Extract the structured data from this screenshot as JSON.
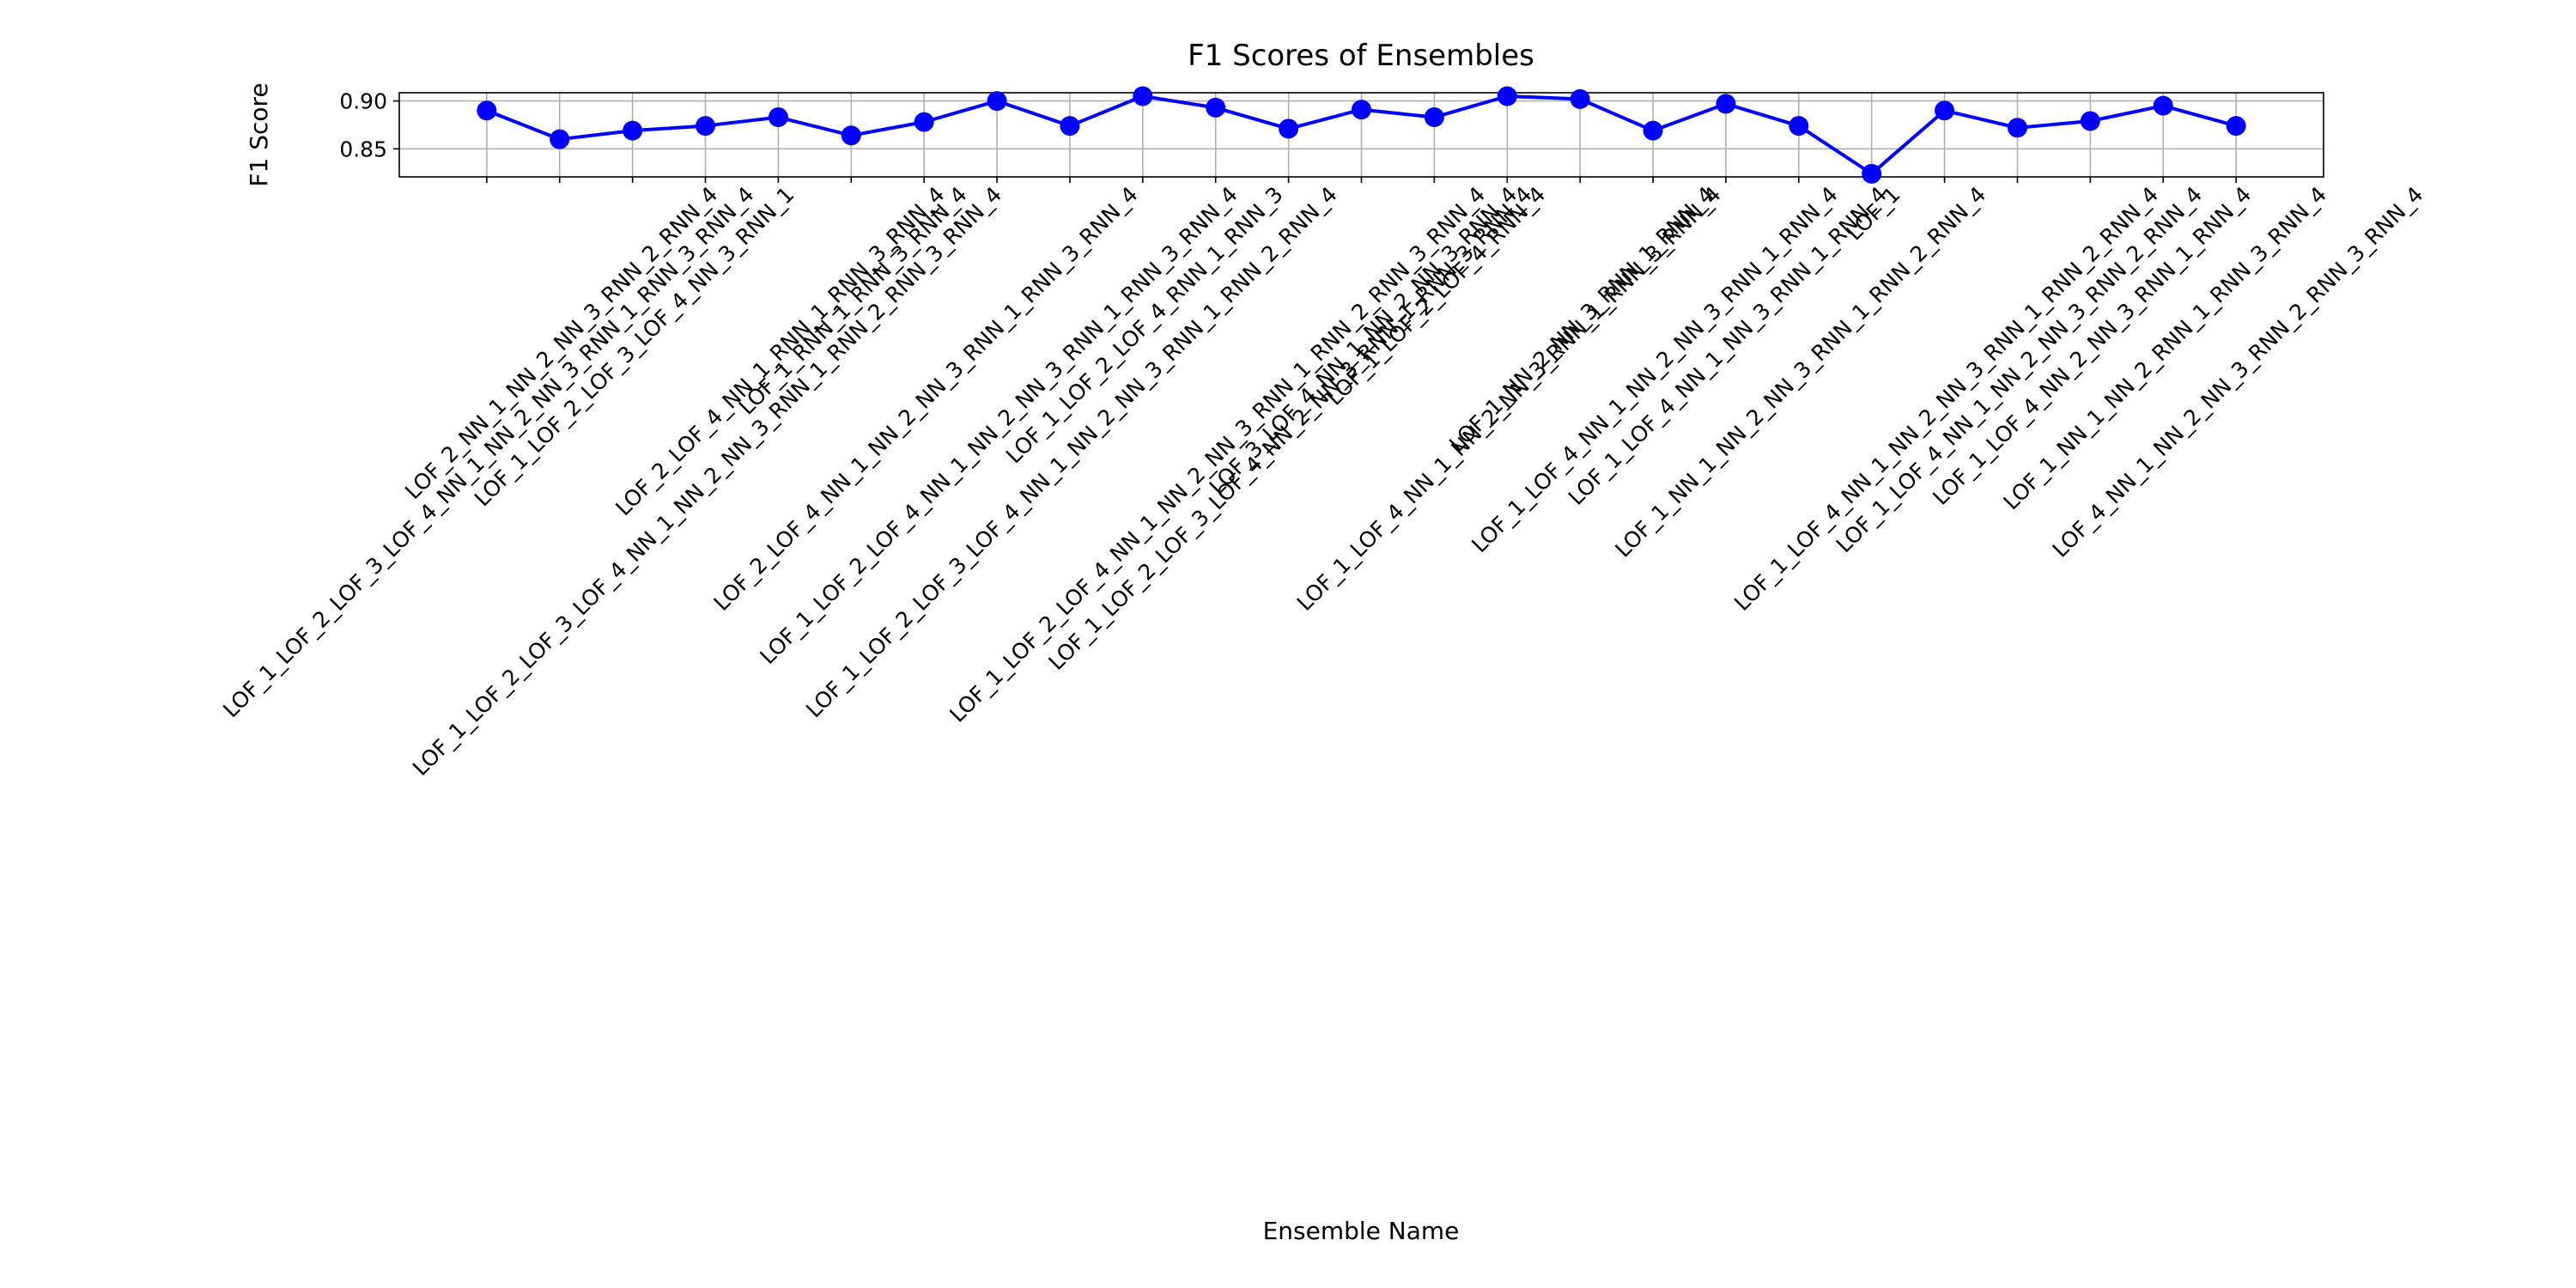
{
  "chart_data": {
    "type": "line",
    "title": "F1 Scores of Ensembles",
    "xlabel": "Ensemble Name",
    "ylabel": "F1 Score",
    "categories": [
      "LOF_1_LOF_2_LOF_3_LOF_4_NN_1_NN_2_NN_3_RNN_1_RNN_3_RNN_4",
      "LOF_2_NN_1_NN_2_NN_3_RNN_2_RNN_4",
      "LOF_1_LOF_2_LOF_3_LOF_4_NN_3_RNN_1",
      "LOF_1_LOF_2_LOF_3_LOF_4_NN_1_NN_2_NN_3_RNN_1_RNN_2_RNN_3_RNN_4",
      "LOF_2_LOF_4_NN_1_RNN_1_RNN_3_RNN_4",
      "LOF_1_RNN_1_RNN_3_RNN_4",
      "LOF_2_LOF_4_NN_1_NN_2_NN_3_RNN_1_RNN_3_RNN_4",
      "LOF_1_LOF_2_LOF_4_NN_1_NN_2_NN_3_RNN_1_RNN_3_RNN_4",
      "LOF_1_LOF_2_LOF_3_LOF_4_NN_1_NN_2_NN_3_RNN_1_RNN_2_RNN_4",
      "LOF_1_LOF_2_LOF_4_RNN_1_RNN_3",
      "LOF_1_LOF_2_LOF_4_NN_1_NN_2_NN_3_RNN_1_RNN_2_RNN_3_RNN_4",
      "LOF_1_LOF_2_LOF_3_LOF_4_NN_2_NN_3_RNN_1_RNN_3_RNN_4",
      "LOF_3_LOF_4_NN_1_NN_2_NN_3_RNN_4",
      "LOF_1_LOF_2_LOF_4_RNN_4",
      "LOF_1_LOF_4_NN_1_NN_2_NN_3_RNN_1_RNN_3_RNN_4",
      "LOF_1_NN_2_NN_3_RNN_1_RNN_4",
      "LOF_1_LOF_4_NN_1_NN_2_NN_3_RNN_1_RNN_4",
      "LOF_1_LOF_4_NN_1_NN_3_RNN_1_RNN_4",
      "LOF_1_NN_1_NN_2_NN_3_RNN_1_RNN_2_RNN_4",
      "LOF_1",
      "LOF_1_LOF_4_NN_1_NN_2_NN_3_RNN_1_RNN_2_RNN_4",
      "LOF_1_LOF_4_NN_1_NN_2_NN_3_RNN_2_RNN_4",
      "LOF_1_LOF_4_NN_2_NN_3_RNN_1_RNN_4",
      "LOF_1_NN_1_NN_2_RNN_1_RNN_3_RNN_4",
      "LOF_4_NN_1_NN_2_NN_3_RNN_2_RNN_3_RNN_4"
    ],
    "values": [
      0.89,
      0.86,
      0.869,
      0.874,
      0.883,
      0.864,
      0.878,
      0.9,
      0.874,
      0.905,
      0.893,
      0.871,
      0.891,
      0.883,
      0.905,
      0.902,
      0.869,
      0.897,
      0.874,
      0.824,
      0.89,
      0.872,
      0.879,
      0.895,
      0.874
    ],
    "color": "#0000ff",
    "ylim": [
      0.8207,
      0.9086
    ],
    "yticks": [
      {
        "value": 0.85,
        "label": "0.85"
      },
      {
        "value": 0.9,
        "label": "0.90"
      }
    ],
    "grid": true
  }
}
